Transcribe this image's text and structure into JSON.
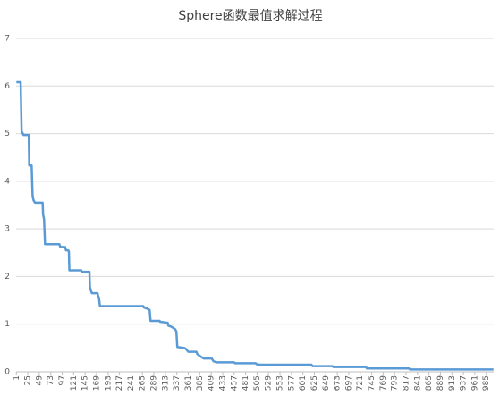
{
  "chart_data": {
    "type": "line",
    "title": "Sphere函数最值求解过程",
    "x": [
      1,
      10,
      12,
      16,
      27,
      28,
      33,
      35,
      37,
      40,
      56,
      57,
      59,
      61,
      91,
      93,
      103,
      105,
      110,
      111,
      112,
      137,
      138,
      154,
      155,
      159,
      171,
      172,
      174,
      176,
      267,
      268,
      274,
      280,
      282,
      301,
      302,
      318,
      319,
      325,
      333,
      336,
      338,
      353,
      356,
      361,
      378,
      380,
      387,
      393,
      410,
      414,
      420,
      457,
      459,
      502,
      504,
      511,
      619,
      621,
      663,
      665,
      733,
      735,
      823,
      825,
      1000
    ],
    "values": [
      6.08,
      6.08,
      5.05,
      4.97,
      4.97,
      4.33,
      4.33,
      3.7,
      3.6,
      3.55,
      3.55,
      3.3,
      3.2,
      2.68,
      2.68,
      2.62,
      2.62,
      2.55,
      2.55,
      2.52,
      2.13,
      2.13,
      2.1,
      2.1,
      1.78,
      1.65,
      1.65,
      1.6,
      1.55,
      1.38,
      1.38,
      1.35,
      1.33,
      1.3,
      1.07,
      1.07,
      1.05,
      1.03,
      0.97,
      0.95,
      0.9,
      0.85,
      0.52,
      0.5,
      0.48,
      0.42,
      0.42,
      0.37,
      0.32,
      0.28,
      0.28,
      0.22,
      0.2,
      0.2,
      0.18,
      0.18,
      0.16,
      0.15,
      0.15,
      0.12,
      0.12,
      0.1,
      0.1,
      0.07,
      0.07,
      0.05,
      0.05
    ],
    "color": "#5b9bd5",
    "xlim": [
      0.5,
      1000.5
    ],
    "xticks": [
      1,
      25,
      49,
      73,
      97,
      121,
      145,
      169,
      193,
      217,
      241,
      265,
      289,
      313,
      337,
      361,
      385,
      409,
      433,
      457,
      481,
      505,
      529,
      553,
      577,
      601,
      625,
      649,
      673,
      697,
      721,
      745,
      769,
      793,
      817,
      841,
      865,
      889,
      913,
      937,
      961,
      985
    ],
    "ylim": [
      0,
      7
    ],
    "yticks": [
      0,
      1,
      2,
      3,
      4,
      5,
      6,
      7
    ],
    "grid": true
  }
}
